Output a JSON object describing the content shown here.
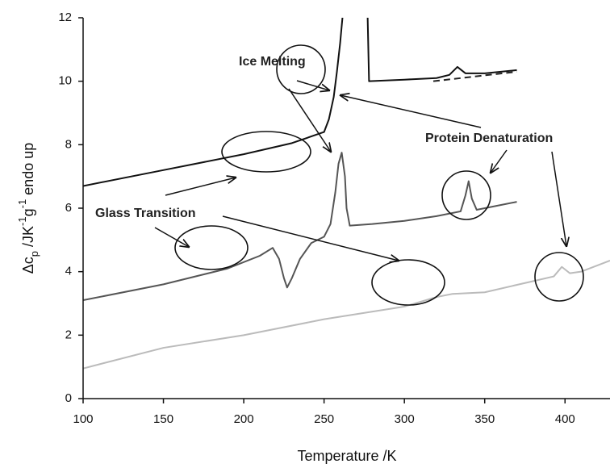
{
  "chart_data": {
    "type": "line",
    "x_label": "Temperature /K",
    "y_label_parts": [
      {
        "text": "Δc",
        "style": "normal"
      },
      {
        "text": "p",
        "style": "sub"
      },
      {
        "text": " /JK",
        "style": "normal"
      },
      {
        "text": "-1",
        "style": "sup"
      },
      {
        "text": "g",
        "style": "normal"
      },
      {
        "text": "-1",
        "style": "sup"
      },
      {
        "text": "  endo up",
        "style": "normal"
      }
    ],
    "xlim": [
      100,
      428
    ],
    "ylim": [
      0,
      12
    ],
    "xticks": [
      100,
      150,
      200,
      250,
      300,
      350,
      400
    ],
    "yticks": [
      0,
      2,
      4,
      6,
      8,
      10,
      12
    ],
    "annotations": [
      "Ice Melting",
      "Protein Denaturation",
      "Glass Transition"
    ],
    "series": [
      {
        "color": "#111111",
        "dash": false,
        "x": [
          100,
          150,
          200,
          230,
          250,
          253,
          256,
          258,
          260,
          262,
          277,
          278,
          300,
          320,
          328,
          333,
          338,
          350,
          370
        ],
        "values": [
          6.7,
          7.2,
          7.7,
          8.05,
          8.4,
          8.8,
          9.5,
          10.3,
          11.2,
          12.3,
          12.3,
          10.0,
          10.05,
          10.1,
          10.2,
          10.45,
          10.25,
          10.25,
          10.35
        ]
      },
      {
        "color": "#222222",
        "dash": true,
        "x": [
          318,
          370
        ],
        "values": [
          10.0,
          10.3
        ]
      },
      {
        "color": "#555555",
        "dash": false,
        "x": [
          100,
          150,
          190,
          210,
          218,
          222,
          225,
          227,
          230,
          235,
          242,
          250,
          254,
          257,
          259,
          261,
          263,
          264,
          266,
          280,
          300,
          320,
          335,
          338,
          340,
          342,
          345,
          370
        ],
        "values": [
          3.1,
          3.6,
          4.1,
          4.5,
          4.75,
          4.4,
          3.8,
          3.5,
          3.8,
          4.4,
          4.9,
          5.1,
          5.5,
          6.5,
          7.4,
          7.75,
          7.0,
          6.0,
          5.45,
          5.5,
          5.6,
          5.75,
          5.9,
          6.4,
          6.85,
          6.3,
          5.95,
          6.2
        ]
      },
      {
        "color": "#bbbbbb",
        "dash": false,
        "x": [
          100,
          150,
          200,
          250,
          300,
          320,
          330,
          350,
          380,
          393,
          398,
          403,
          410,
          428
        ],
        "values": [
          0.95,
          1.6,
          2.0,
          2.5,
          2.9,
          3.2,
          3.3,
          3.35,
          3.7,
          3.85,
          4.15,
          3.95,
          4.0,
          4.35
        ]
      }
    ]
  }
}
